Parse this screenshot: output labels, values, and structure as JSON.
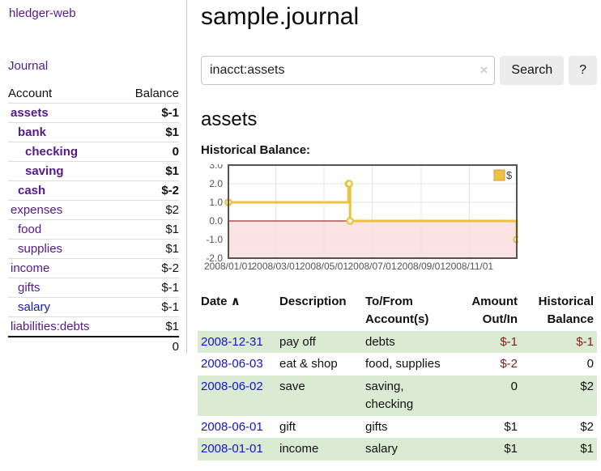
{
  "app": {
    "title": "hledger-web"
  },
  "colors": {
    "link_purple": "#551a8b",
    "link_blue": "#1414cc",
    "negative": "#8b1a1a",
    "negative_light": "#c47070",
    "row_stripe_green": "#dbead2",
    "series_yellow": "#edc240",
    "negative_region_pink": "#fadada",
    "zero_line_red": "#8b0000"
  },
  "sidebar": {
    "journal_link": "Journal",
    "header": {
      "account": "Account",
      "balance": "Balance"
    },
    "accounts": [
      {
        "name": "assets",
        "balance": "$-1",
        "depth": 1,
        "bold": true,
        "bal_class": "neg"
      },
      {
        "name": "bank",
        "balance": "$1",
        "depth": 2,
        "bold": true,
        "bal_class": ""
      },
      {
        "name": "checking",
        "balance": "0",
        "depth": 3,
        "bold": true,
        "bal_class": ""
      },
      {
        "name": "saving",
        "balance": "$1",
        "depth": 3,
        "bold": true,
        "bal_class": ""
      },
      {
        "name": "cash",
        "balance": "$-2",
        "depth": 2,
        "bold": true,
        "bal_class": "neg"
      },
      {
        "name": "expenses",
        "balance": "$2",
        "depth": 1,
        "bold": false,
        "bal_class": ""
      },
      {
        "name": "food",
        "balance": "$1",
        "depth": 2,
        "bold": false,
        "bal_class": ""
      },
      {
        "name": "supplies",
        "balance": "$1",
        "depth": 2,
        "bold": false,
        "bal_class": ""
      },
      {
        "name": "income",
        "balance": "$-2",
        "depth": 1,
        "bold": false,
        "bal_class": "neglight"
      },
      {
        "name": "gifts",
        "balance": "$-1",
        "depth": 2,
        "bold": false,
        "bal_class": "neglight"
      },
      {
        "name": "salary",
        "balance": "$-1",
        "depth": 2,
        "bold": false,
        "bal_class": "neglight",
        "link_color": "blue"
      },
      {
        "name": "liabilities:debts",
        "balance": "$1",
        "depth": 1,
        "bold": false,
        "bal_class": ""
      }
    ],
    "total": "0"
  },
  "main": {
    "title": "sample.journal",
    "search": {
      "value": "inacct:assets",
      "clear_icon": "×",
      "button_label": "Search",
      "help_label": "?"
    },
    "account_heading": "assets"
  },
  "chart_data": {
    "type": "line",
    "line_style": "step",
    "title": "Historical Balance:",
    "legend": {
      "label": "$",
      "position": "top-right"
    },
    "series": [
      {
        "name": "$",
        "color": "#edc240",
        "points": [
          [
            "2008-01-01",
            1
          ],
          [
            "2008-06-01",
            2
          ],
          [
            "2008-06-02",
            2
          ],
          [
            "2008-06-03",
            0
          ],
          [
            "2008-12-31",
            -1
          ]
        ]
      }
    ],
    "x_range": [
      "2008-01-01",
      "2008-12-31"
    ],
    "ylim": [
      -2.0,
      3.0
    ],
    "y_ticks": [
      "3.0",
      "2.0",
      "1.0",
      "0.0",
      "-1.0",
      "-2.0"
    ],
    "x_ticks": [
      "2008/01/01",
      "2008/03/01",
      "2008/05/01",
      "2008/07/01",
      "2008/09/01",
      "2008/11/01"
    ],
    "grid": true,
    "negative_region_shaded": true
  },
  "register": {
    "columns": {
      "date": "Date",
      "description": "Description",
      "accounts": "To/From Account(s)",
      "amount": "Amount Out/In",
      "balance": "Historical Balance"
    },
    "sort_icon": "∧",
    "rows": [
      {
        "date": "2008-12-31",
        "description": "pay off",
        "accounts": "debts",
        "amount": "$-1",
        "amount_class": "neg",
        "balance": "$-1",
        "balance_class": "neg"
      },
      {
        "date": "2008-06-03",
        "description": "eat & shop",
        "accounts": "food, supplies",
        "amount": "$-2",
        "amount_class": "neg",
        "balance": "0",
        "balance_class": ""
      },
      {
        "date": "2008-06-02",
        "description": "save",
        "accounts": "saving, checking",
        "amount": "0",
        "amount_class": "",
        "balance": "$2",
        "balance_class": ""
      },
      {
        "date": "2008-06-01",
        "description": "gift",
        "accounts": "gifts",
        "amount": "$1",
        "amount_class": "",
        "balance": "$2",
        "balance_class": ""
      },
      {
        "date": "2008-01-01",
        "description": "income",
        "accounts": "salary",
        "amount": "$1",
        "amount_class": "",
        "balance": "$1",
        "balance_class": ""
      }
    ]
  }
}
